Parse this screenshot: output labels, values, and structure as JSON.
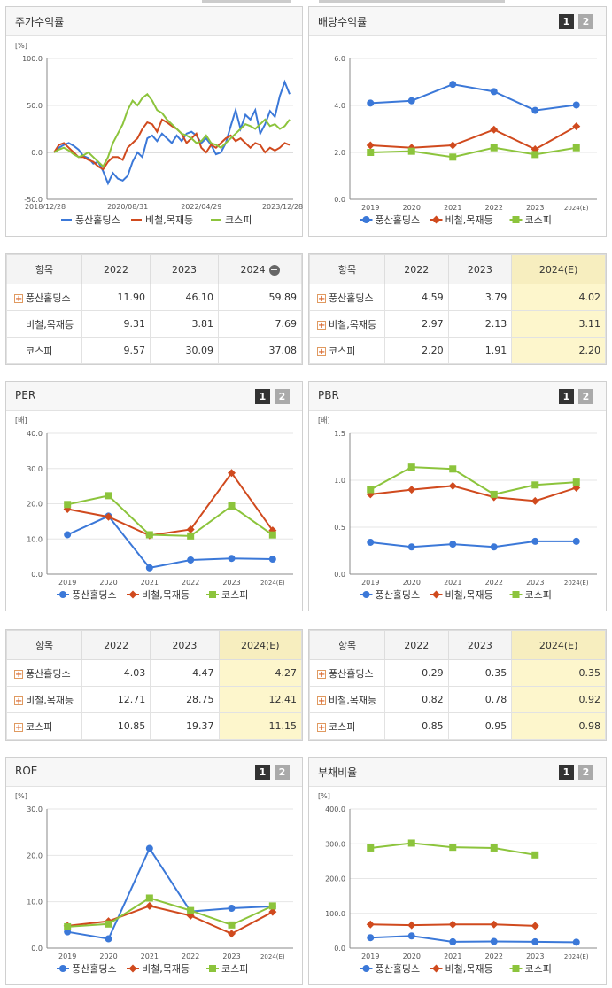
{
  "panels": [
    {
      "id": "ret",
      "title": "주가수익률",
      "paging": false
    },
    {
      "id": "div",
      "title": "배당수익률",
      "paging": true
    },
    {
      "id": "per",
      "title": "PER",
      "paging": true
    },
    {
      "id": "pbr",
      "title": "PBR",
      "paging": true
    },
    {
      "id": "roe",
      "title": "ROE",
      "paging": true
    },
    {
      "id": "debt",
      "title": "부채비율",
      "paging": true
    }
  ],
  "page_buttons": [
    "1",
    "2"
  ],
  "colors": {
    "company": "#3b78d8",
    "industry": "#d04a1e",
    "kospi": "#8cc43c"
  },
  "legend": [
    "풍산홀딩스",
    "비철,목재등",
    "코스피"
  ],
  "chart_data": [
    {
      "type": "line",
      "id": "ret",
      "unit": "[%]",
      "ylim": [
        -50,
        100
      ],
      "yticks": [
        "100.0",
        "50.0",
        "0.0",
        "-50.0"
      ],
      "yvals": [
        100,
        50,
        0,
        -50
      ],
      "xticks": [
        "2018/12/28",
        "2020/08/31",
        "2022/04/29",
        "2023/12/28"
      ],
      "series": [
        {
          "name": "풍산홀딩스",
          "values": [
            0,
            5,
            8,
            10,
            7,
            3,
            -4,
            -6,
            -12,
            -10,
            -20,
            -33,
            -22,
            -28,
            -30,
            -25,
            -10,
            0,
            -5,
            15,
            18,
            12,
            20,
            15,
            10,
            18,
            12,
            20,
            22,
            18,
            10,
            15,
            8,
            -2,
            0,
            10,
            28,
            45,
            25,
            40,
            35,
            45,
            20,
            30,
            44,
            38,
            60,
            75,
            62
          ]
        },
        {
          "name": "비철,목재등",
          "values": [
            0,
            8,
            10,
            5,
            0,
            -5,
            -5,
            -8,
            -10,
            -15,
            -18,
            -10,
            -5,
            -5,
            -8,
            5,
            10,
            15,
            25,
            32,
            30,
            22,
            35,
            32,
            28,
            25,
            20,
            10,
            15,
            20,
            5,
            0,
            8,
            5,
            10,
            15,
            18,
            12,
            15,
            10,
            5,
            10,
            8,
            0,
            5,
            2,
            5,
            10,
            8
          ]
        },
        {
          "name": "코스피",
          "values": [
            0,
            3,
            5,
            2,
            -2,
            -5,
            -3,
            0,
            -5,
            -10,
            -15,
            -5,
            10,
            20,
            30,
            45,
            55,
            50,
            58,
            62,
            55,
            45,
            42,
            35,
            30,
            25,
            20,
            18,
            15,
            10,
            12,
            18,
            10,
            8,
            5,
            10,
            15,
            20,
            25,
            30,
            28,
            25,
            30,
            35,
            28,
            30,
            25,
            28,
            35
          ]
        }
      ]
    },
    {
      "type": "line",
      "id": "div",
      "unit": "",
      "ylim": [
        0,
        6
      ],
      "yticks": [
        "6.0",
        "4.0",
        "2.0",
        "0.0"
      ],
      "yvals": [
        6,
        4,
        2,
        0
      ],
      "xticks": [
        "2019",
        "2020",
        "2021",
        "2022",
        "2023",
        "2024(E)"
      ],
      "series": [
        {
          "name": "풍산홀딩스",
          "values": [
            4.1,
            4.2,
            4.9,
            4.59,
            3.79,
            4.02
          ]
        },
        {
          "name": "비철,목재등",
          "values": [
            2.3,
            2.2,
            2.3,
            2.97,
            2.13,
            3.11
          ]
        },
        {
          "name": "코스피",
          "values": [
            2.0,
            2.05,
            1.8,
            2.2,
            1.91,
            2.2
          ]
        }
      ]
    },
    {
      "type": "line",
      "id": "per",
      "unit": "[배]",
      "ylim": [
        0,
        40
      ],
      "yticks": [
        "40.0",
        "30.0",
        "20.0",
        "10.0",
        "0.0"
      ],
      "yvals": [
        40,
        30,
        20,
        10,
        0
      ],
      "xticks": [
        "2019",
        "2020",
        "2021",
        "2022",
        "2023",
        "2024(E)"
      ],
      "series": [
        {
          "name": "풍산홀딩스",
          "values": [
            11.2,
            16.5,
            1.8,
            4.03,
            4.47,
            4.27
          ]
        },
        {
          "name": "비철,목재등",
          "values": [
            18.5,
            16.3,
            11.0,
            12.71,
            28.75,
            12.41
          ]
        },
        {
          "name": "코스피",
          "values": [
            19.8,
            22.3,
            11.2,
            10.85,
            19.37,
            11.15
          ]
        }
      ]
    },
    {
      "type": "line",
      "id": "pbr",
      "unit": "[배]",
      "ylim": [
        0,
        1.5
      ],
      "yticks": [
        "1.5",
        "1.0",
        "0.5",
        "0.0"
      ],
      "yvals": [
        1.5,
        1.0,
        0.5,
        0
      ],
      "xticks": [
        "2019",
        "2020",
        "2021",
        "2022",
        "2023",
        "2024(E)"
      ],
      "series": [
        {
          "name": "풍산홀딩스",
          "values": [
            0.34,
            0.29,
            0.32,
            0.29,
            0.35,
            0.35
          ]
        },
        {
          "name": "비철,목재등",
          "values": [
            0.85,
            0.9,
            0.94,
            0.82,
            0.78,
            0.92
          ]
        },
        {
          "name": "코스피",
          "values": [
            0.9,
            1.14,
            1.12,
            0.85,
            0.95,
            0.98
          ]
        }
      ]
    },
    {
      "type": "line",
      "id": "roe",
      "unit": "[%]",
      "ylim": [
        0,
        30
      ],
      "yticks": [
        "30.0",
        "20.0",
        "10.0",
        "0.0"
      ],
      "yvals": [
        30,
        20,
        10,
        0
      ],
      "xticks": [
        "2019",
        "2020",
        "2021",
        "2022",
        "2023",
        "2024(E)"
      ],
      "series": [
        {
          "name": "풍산홀딩스",
          "values": [
            3.5,
            2.0,
            21.5,
            7.9,
            8.6,
            9.0
          ]
        },
        {
          "name": "비철,목재등",
          "values": [
            4.8,
            5.8,
            9.1,
            7.0,
            3.1,
            7.8
          ]
        },
        {
          "name": "코스피",
          "values": [
            4.6,
            5.2,
            10.8,
            8.1,
            5.0,
            9.1
          ]
        }
      ]
    },
    {
      "type": "line",
      "id": "debt",
      "unit": "[%]",
      "ylim": [
        0,
        400
      ],
      "yticks": [
        "400.0",
        "300.0",
        "200.0",
        "100.0",
        "0.0"
      ],
      "yvals": [
        400,
        300,
        200,
        100,
        0
      ],
      "xticks": [
        "2019",
        "2020",
        "2021",
        "2022",
        "2023",
        "2024(E)"
      ],
      "series": [
        {
          "name": "풍산홀딩스",
          "values": [
            30,
            35,
            18,
            19,
            18,
            17
          ]
        },
        {
          "name": "비철,목재등",
          "values": [
            68,
            66,
            68,
            68,
            64,
            null
          ]
        },
        {
          "name": "코스피",
          "values": [
            288,
            302,
            290,
            288,
            268,
            null
          ]
        }
      ]
    }
  ],
  "tables": [
    {
      "id": "t_ret",
      "header": [
        "항목",
        "2022",
        "2023",
        "2024"
      ],
      "highlight": false,
      "minus": true,
      "rows": [
        {
          "plus": true,
          "cells": [
            "풍산홀딩스",
            "11.90",
            "46.10",
            "59.89"
          ]
        },
        {
          "plus": false,
          "cells": [
            "비철,목재등",
            "9.31",
            "3.81",
            "7.69"
          ]
        },
        {
          "plus": false,
          "cells": [
            "코스피",
            "9.57",
            "30.09",
            "37.08"
          ]
        }
      ]
    },
    {
      "id": "t_div",
      "header": [
        "항목",
        "2022",
        "2023",
        "2024(E)"
      ],
      "highlight": true,
      "minus": false,
      "rows": [
        {
          "plus": true,
          "cells": [
            "풍산홀딩스",
            "4.59",
            "3.79",
            "4.02"
          ]
        },
        {
          "plus": true,
          "cells": [
            "비철,목재등",
            "2.97",
            "2.13",
            "3.11"
          ]
        },
        {
          "plus": true,
          "cells": [
            "코스피",
            "2.20",
            "1.91",
            "2.20"
          ]
        }
      ]
    },
    {
      "id": "t_per",
      "header": [
        "항목",
        "2022",
        "2023",
        "2024(E)"
      ],
      "highlight": true,
      "minus": false,
      "rows": [
        {
          "plus": true,
          "cells": [
            "풍산홀딩스",
            "4.03",
            "4.47",
            "4.27"
          ]
        },
        {
          "plus": true,
          "cells": [
            "비철,목재등",
            "12.71",
            "28.75",
            "12.41"
          ]
        },
        {
          "plus": true,
          "cells": [
            "코스피",
            "10.85",
            "19.37",
            "11.15"
          ]
        }
      ]
    },
    {
      "id": "t_pbr",
      "header": [
        "항목",
        "2022",
        "2023",
        "2024(E)"
      ],
      "highlight": true,
      "minus": false,
      "rows": [
        {
          "plus": true,
          "cells": [
            "풍산홀딩스",
            "0.29",
            "0.35",
            "0.35"
          ]
        },
        {
          "plus": true,
          "cells": [
            "비철,목재등",
            "0.82",
            "0.78",
            "0.92"
          ]
        },
        {
          "plus": true,
          "cells": [
            "코스피",
            "0.85",
            "0.95",
            "0.98"
          ]
        }
      ]
    }
  ]
}
